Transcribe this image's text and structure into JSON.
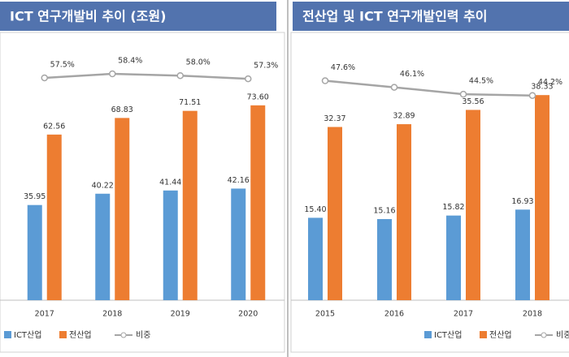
{
  "chart_data": [
    {
      "type": "bar",
      "title": "ICT 연구개발비 추이 (조원)",
      "categories": [
        "2017",
        "2018",
        "2019",
        "2020"
      ],
      "series": [
        {
          "name": "ICT산업",
          "color": "#5b9bd5",
          "values": [
            35.95,
            40.22,
            41.44,
            42.16
          ],
          "value_labels": [
            "35.95",
            "40.22",
            "41.44",
            "42.16"
          ]
        },
        {
          "name": "전산업",
          "color": "#ed7d31",
          "values": [
            62.56,
            68.83,
            71.51,
            73.6
          ],
          "value_labels": [
            "62.56",
            "68.83",
            "71.51",
            "73.60"
          ]
        },
        {
          "name": "비중",
          "type": "line",
          "axis": "y2",
          "color": "#a5a5a5",
          "values": [
            57.5,
            58.4,
            58.0,
            57.3
          ],
          "value_labels": [
            "57.5%",
            "58.4%",
            "58.0%",
            "57.3%"
          ]
        }
      ],
      "ylim": [
        0,
        95
      ],
      "y2lim": [
        8,
        64
      ],
      "legend": "bottom"
    },
    {
      "type": "bar",
      "title": "전산업 및 ICT 연구개발인력 추이",
      "categories": [
        "2015",
        "2016",
        "2017",
        "2018"
      ],
      "series": [
        {
          "name": "ICT산업",
          "color": "#5b9bd5",
          "values": [
            15.4,
            15.16,
            15.82,
            16.93
          ],
          "value_labels": [
            "15.40",
            "15.16",
            "15.82",
            "16.93"
          ]
        },
        {
          "name": "전산업",
          "color": "#ed7d31",
          "values": [
            32.37,
            32.89,
            35.56,
            38.33
          ],
          "value_labels": [
            "32.37",
            "32.89",
            "35.56",
            "38.33"
          ]
        },
        {
          "name": "비중",
          "type": "line",
          "axis": "y2",
          "color": "#a5a5a5",
          "values": [
            47.6,
            46.1,
            44.5,
            44.2
          ],
          "value_labels": [
            "47.6%",
            "46.1%",
            "44.5%",
            "44.2%"
          ]
        }
      ],
      "ylim": [
        0,
        47
      ],
      "y2lim": [
        -3,
        55
      ],
      "legend": "bottom"
    }
  ]
}
